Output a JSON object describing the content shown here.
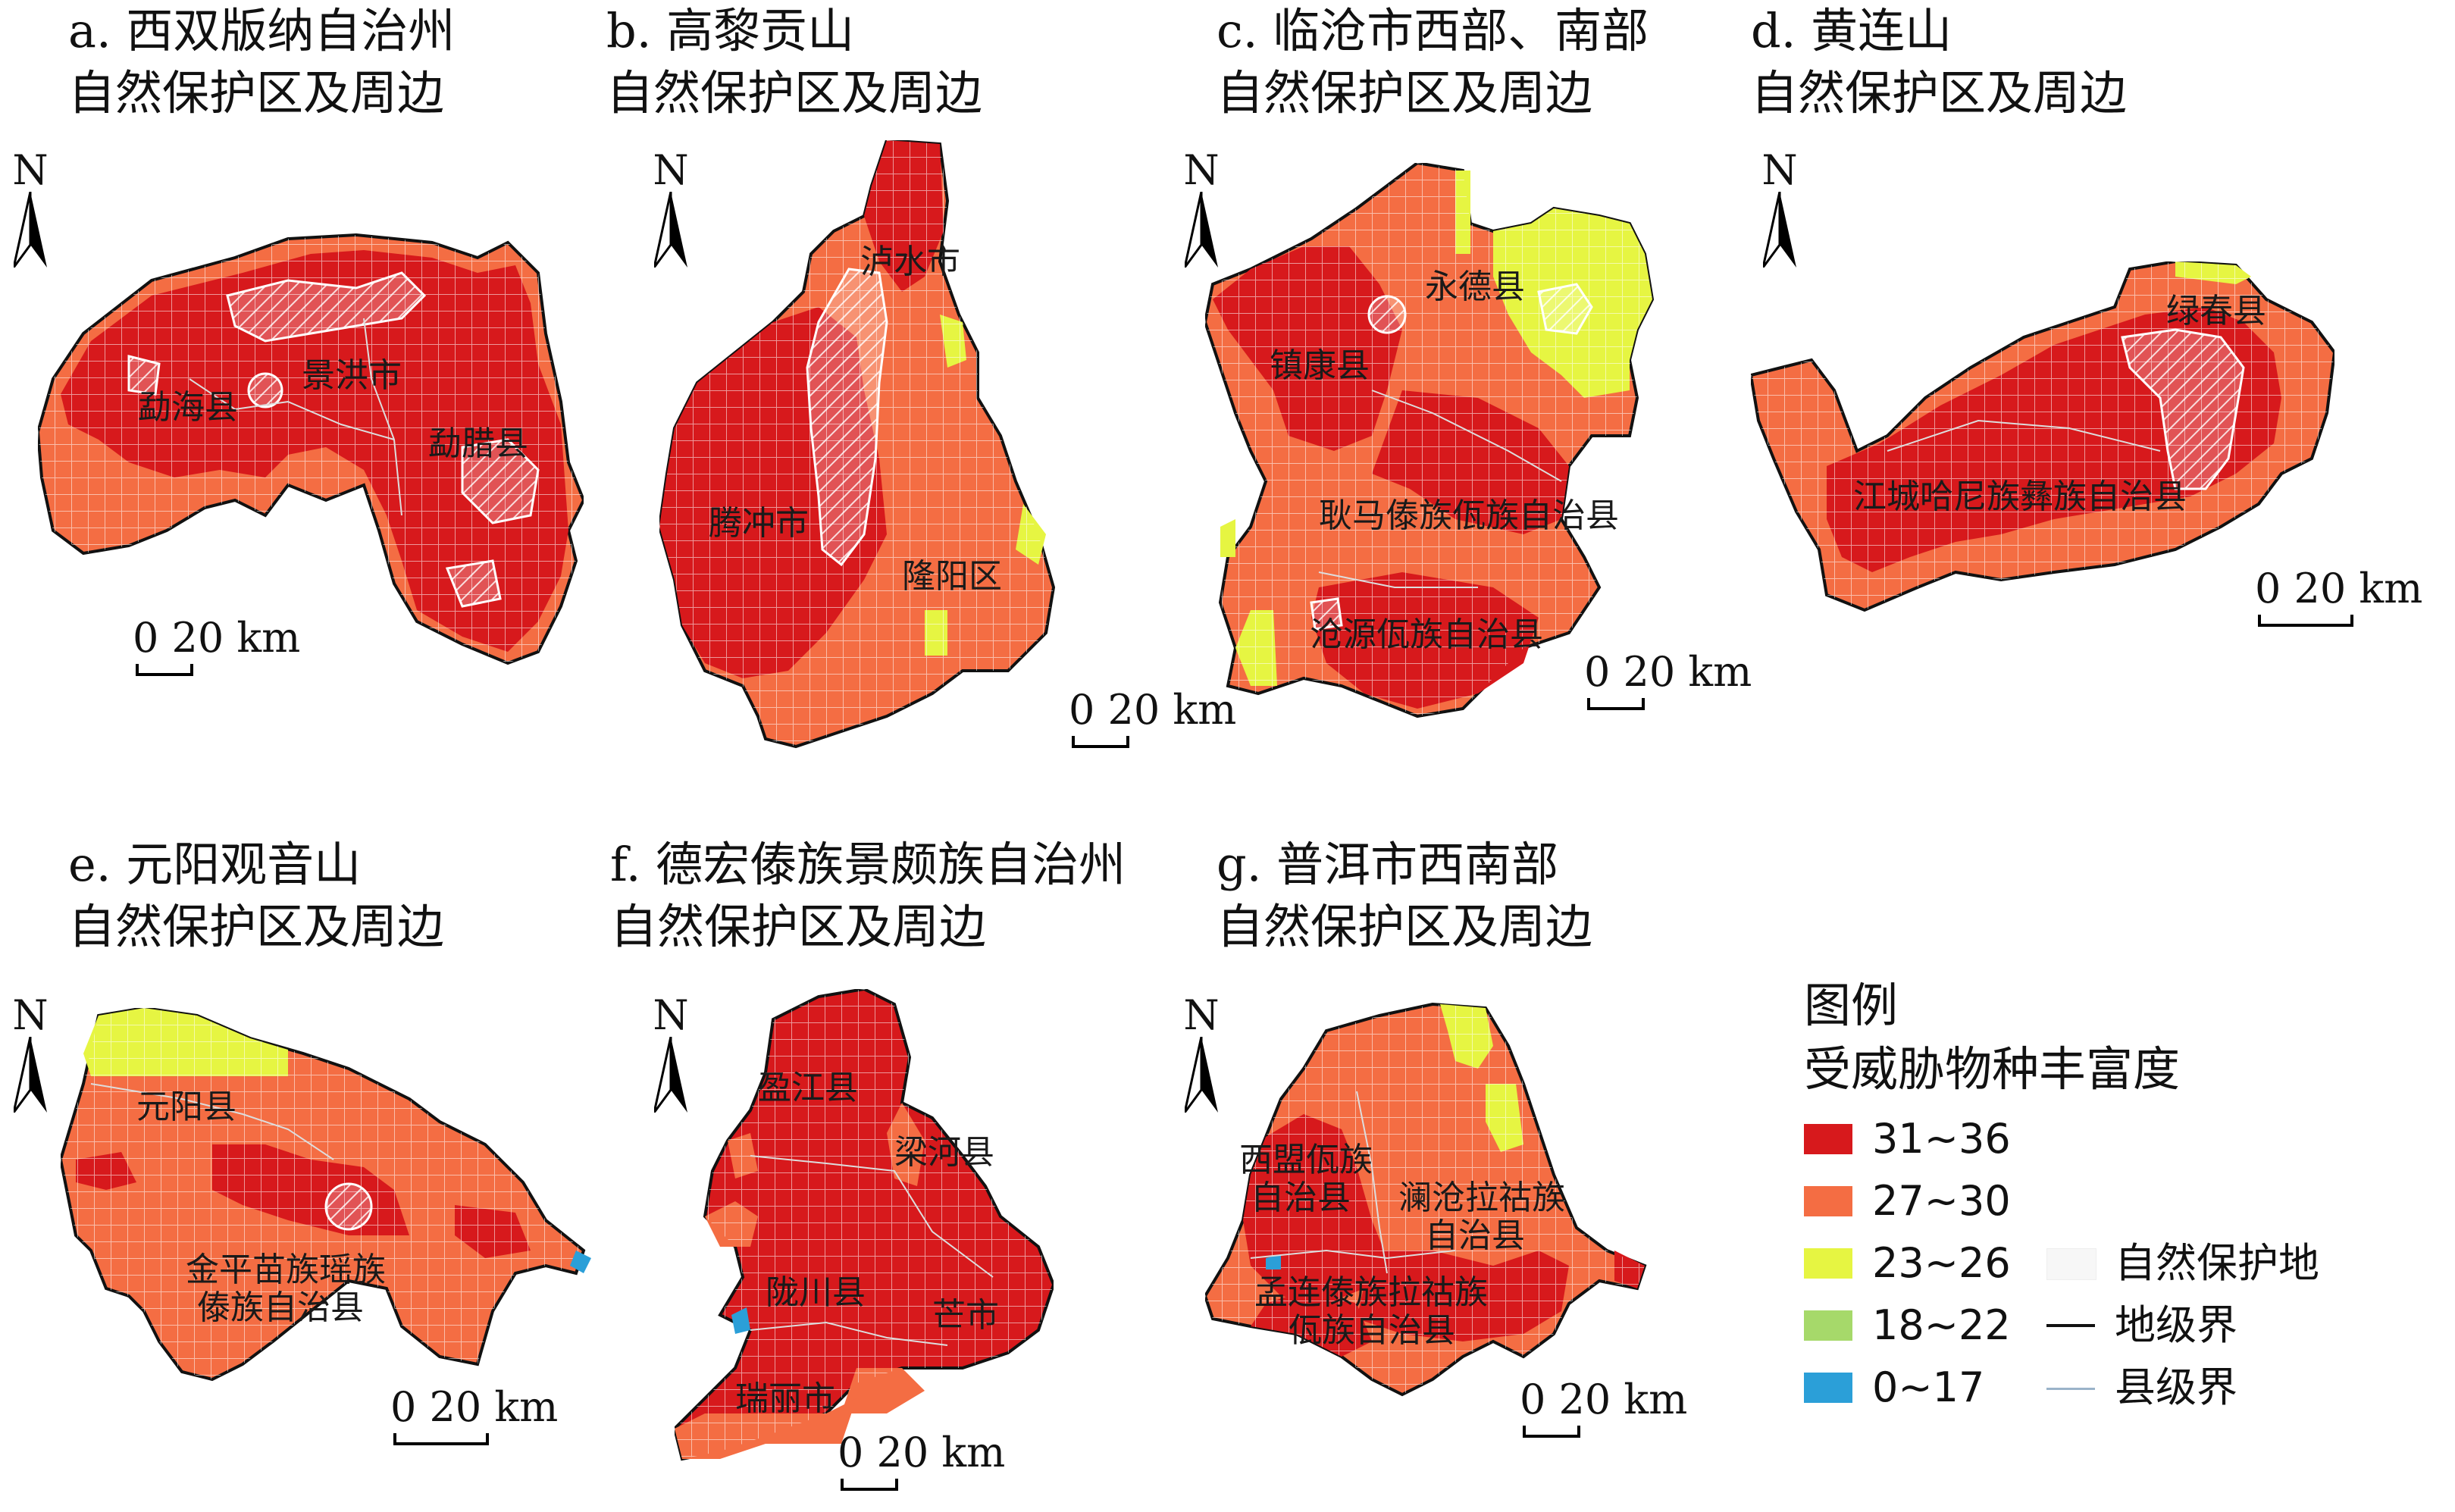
{
  "panels": [
    {
      "title": "a. 西双版纳自治州",
      "subtitle": "自然保护区及周边",
      "labels": [
        "勐海县",
        "景洪市",
        "勐腊县"
      ]
    },
    {
      "title": "b. 高黎贡山",
      "subtitle": "自然保护区及周边",
      "labels": [
        "泸水市",
        "腾冲市",
        "隆阳区"
      ]
    },
    {
      "title": "c. 临沧市西部、南部",
      "subtitle": "自然保护区及周边",
      "labels": [
        "永德县",
        "镇康县",
        "耿马傣族佤族自治县",
        "沧源佤族自治县"
      ]
    },
    {
      "title": "d. 黄连山",
      "subtitle": "自然保护区及周边",
      "labels": [
        "绿春县",
        "江城哈尼族彝族自治县"
      ]
    },
    {
      "title": "e. 元阳观音山",
      "subtitle": "自然保护区及周边",
      "labels": [
        "元阳县",
        "金平苗族瑶族",
        "傣族自治县"
      ]
    },
    {
      "title": "f. 德宏傣族景颇族自治州",
      "subtitle": "自然保护区及周边",
      "labels": [
        "盈江县",
        "梁河县",
        "陇川县",
        "芒市",
        "瑞丽市"
      ]
    },
    {
      "title": "g. 普洱市西南部",
      "subtitle": "自然保护区及周边",
      "labels": [
        "西盟佤族",
        "自治县",
        "澜沧拉祜族",
        "自治县",
        "孟连傣族拉祜族",
        "佤族自治县"
      ]
    }
  ],
  "north_label": "N",
  "scale_text": "0  20 km",
  "legend": {
    "title": "图例",
    "subtitle": "受威胁物种丰富度",
    "classes": [
      {
        "label": "31~36",
        "color": "#d7191c"
      },
      {
        "label": "27~30",
        "color": "#f46d43"
      },
      {
        "label": "23~26",
        "color": "#e6f542"
      },
      {
        "label": "18~22",
        "color": "#a6d96a"
      },
      {
        "label": "0~17",
        "color": "#2b9fd8"
      }
    ],
    "symbols": [
      {
        "label": "自然保护地",
        "type": "protected-area-symbol"
      },
      {
        "label": "地级界",
        "type": "prefecture-boundary-line"
      },
      {
        "label": "县级界",
        "type": "county-boundary-line"
      }
    ]
  },
  "colors": {
    "high": "#d7191c",
    "mid": "#f46d43",
    "low": "#e6f542",
    "lower": "#a6d96a",
    "lowest": "#2b9fd8",
    "grid": "#ffffff"
  }
}
